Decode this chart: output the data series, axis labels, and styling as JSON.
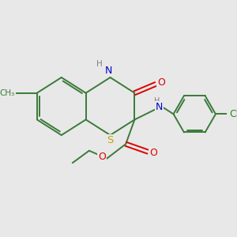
{
  "background_color": "#e8e8e8",
  "bond_color": "#3a7a3a",
  "atom_colors": {
    "N": "#0000cc",
    "O": "#dd0000",
    "S": "#bbaa00",
    "Cl": "#228822",
    "H": "#808080"
  },
  "bond_width": 1.4,
  "font_size": 8.5
}
